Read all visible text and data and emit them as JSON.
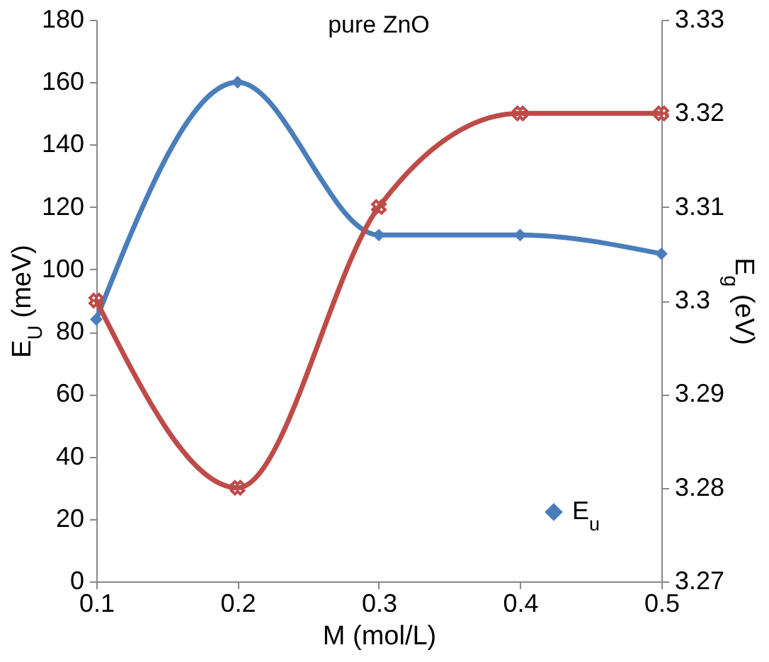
{
  "chart_data": {
    "type": "line",
    "title": "pure ZnO",
    "xlabel": "M (mol/L)",
    "ylabel": "E$_{U}$ (meV)",
    "y2label": "E$_{g}$ (eV)",
    "x": [
      0.1,
      0.2,
      0.3,
      0.4,
      0.5
    ],
    "series": [
      {
        "name": "E$_{u}$",
        "color": "#4a7ebb",
        "marker": "diamond",
        "values": [
          84,
          160,
          111,
          111,
          105
        ]
      },
      {
        "color": "#be4b48",
        "marker": "cross",
        "axis": "y2",
        "values": [
          3.3,
          3.28,
          3.31,
          3.32,
          3.32
        ]
      }
    ],
    "xlim": [
      0.1,
      0.5
    ],
    "xticks": [
      0.1,
      0.2,
      0.3,
      0.4,
      0.5
    ],
    "ylim": [
      0,
      180
    ],
    "yticks": [
      0,
      20,
      40,
      60,
      80,
      100,
      120,
      140,
      160,
      180
    ],
    "y2lim": [
      3.27,
      3.33
    ],
    "y2ticks": [
      3.27,
      3.28,
      3.29,
      3.3,
      3.31,
      3.32,
      3.33
    ],
    "legend": "bottom right",
    "grid": false
  }
}
